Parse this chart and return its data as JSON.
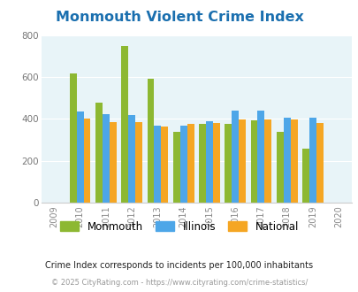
{
  "title": "Monmouth Violent Crime Index",
  "years": [
    2009,
    2010,
    2011,
    2012,
    2013,
    2014,
    2015,
    2016,
    2017,
    2018,
    2019,
    2020
  ],
  "bar_years": [
    2010,
    2011,
    2012,
    2013,
    2014,
    2015,
    2016,
    2017,
    2018,
    2019
  ],
  "monmouth": [
    615,
    478,
    748,
    593,
    338,
    378,
    375,
    393,
    340,
    258
  ],
  "illinois": [
    435,
    423,
    418,
    368,
    370,
    388,
    440,
    438,
    405,
    408
  ],
  "national": [
    400,
    387,
    387,
    365,
    375,
    383,
    398,
    399,
    399,
    380
  ],
  "color_monmouth": "#8db832",
  "color_illinois": "#4da6e8",
  "color_national": "#f5a623",
  "ylim": [
    0,
    800
  ],
  "yticks": [
    0,
    200,
    400,
    600,
    800
  ],
  "bg_color": "#e8f4f8",
  "subtitle": "Crime Index corresponds to incidents per 100,000 inhabitants",
  "footer": "© 2025 CityRating.com - https://www.cityrating.com/crime-statistics/",
  "title_color": "#1a6faf",
  "subtitle_color": "#222222",
  "footer_color": "#999999"
}
